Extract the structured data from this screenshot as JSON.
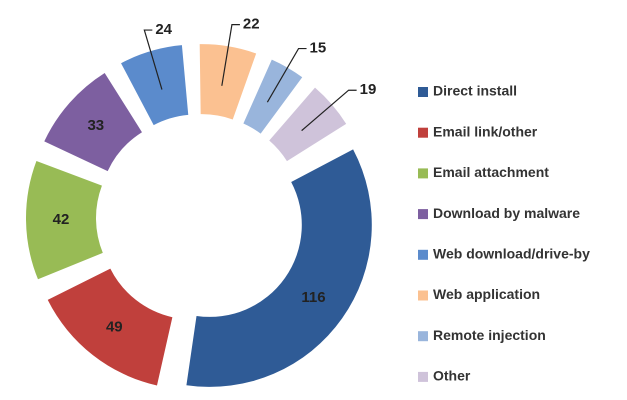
{
  "chart_data": {
    "type": "donut",
    "categories": [
      "Direct install",
      "Email link/other",
      "Email attachment",
      "Download by malware",
      "Web download/drive-by",
      "Web application",
      "Remote injection",
      "Other"
    ],
    "values": [
      116,
      49,
      42,
      33,
      24,
      22,
      15,
      19
    ],
    "colors": [
      "#2f5b96",
      "#c0403c",
      "#98bb55",
      "#7d5fa0",
      "#5b8bcc",
      "#fbc191",
      "#99b5dc",
      "#cfc3da"
    ],
    "legend": "right"
  }
}
